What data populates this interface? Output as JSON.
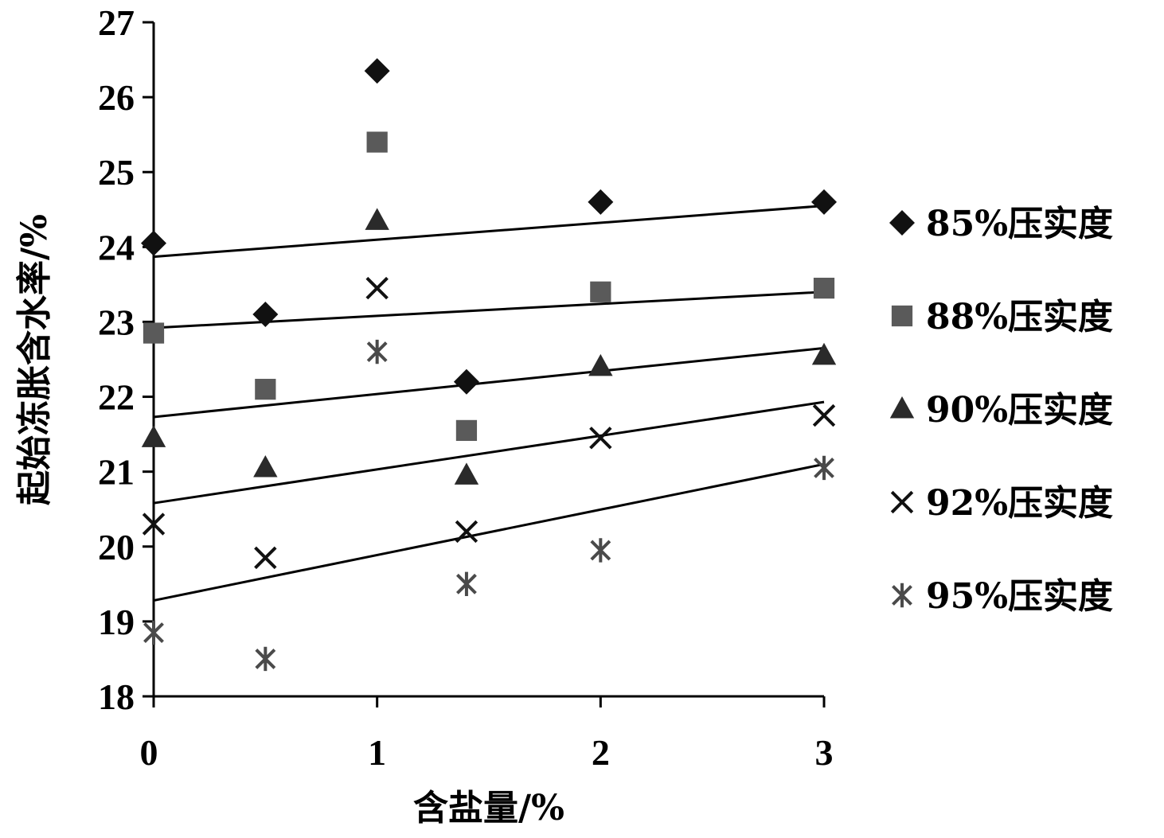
{
  "chart_data": {
    "type": "scatter",
    "xlabel": "含盐量/%",
    "ylabel": "起始冻胀含水率/%",
    "xlim": [
      0,
      3
    ],
    "ylim": [
      18,
      27
    ],
    "x_ticks": [
      "0",
      "1",
      "2",
      "3"
    ],
    "y_ticks": [
      "18",
      "19",
      "20",
      "21",
      "22",
      "23",
      "24",
      "25",
      "26",
      "27"
    ],
    "legend_position": "right",
    "grid": false,
    "x": [
      0,
      0.5,
      1,
      1.4,
      2,
      3
    ],
    "series": [
      {
        "name": "85%压实度",
        "marker": "diamond",
        "color": "#111111",
        "values": [
          24.05,
          23.1,
          26.35,
          22.2,
          24.6,
          24.6
        ],
        "trend": [
          23.87,
          24.55
        ]
      },
      {
        "name": "88%压实度",
        "marker": "square",
        "color": "#5a5a5a",
        "values": [
          22.85,
          22.1,
          25.4,
          21.55,
          23.4,
          23.45
        ],
        "trend": [
          22.92,
          23.4
        ]
      },
      {
        "name": "90%压实度",
        "marker": "triangle",
        "color": "#2a2a2a",
        "values": [
          21.45,
          21.05,
          24.35,
          20.95,
          22.4,
          22.55
        ],
        "trend": [
          21.73,
          22.65
        ]
      },
      {
        "name": "92%压实度",
        "marker": "x",
        "color": "#111111",
        "values": [
          20.3,
          19.85,
          23.45,
          20.2,
          21.45,
          21.75
        ],
        "trend": [
          20.58,
          21.93
        ]
      },
      {
        "name": "95%压实度",
        "marker": "asterisk",
        "color": "#4a4a4a",
        "values": [
          18.85,
          18.5,
          22.6,
          19.5,
          19.95,
          21.05
        ],
        "trend": [
          19.28,
          21.1
        ]
      }
    ]
  }
}
